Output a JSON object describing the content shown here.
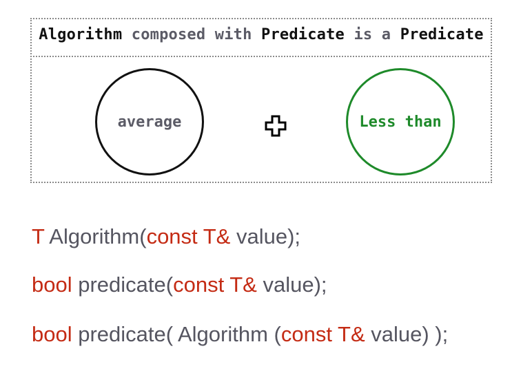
{
  "header": {
    "parts": [
      "Algorithm",
      "composed with",
      "Predicate",
      "is a",
      "Predicate"
    ]
  },
  "diagram": {
    "left_label": "average",
    "operator": "+",
    "right_label": "Less than"
  },
  "code": {
    "line1": [
      "T",
      "Algorithm(",
      "const T&",
      "value);"
    ],
    "line2": [
      "bool",
      "predicate(",
      "const T&",
      "value);"
    ],
    "line3": [
      "bool",
      "predicate( Algorithm (",
      "const T&",
      "value) );"
    ]
  },
  "colors": {
    "keyword": "#c42b14",
    "text": "#555560",
    "predicate_circle": "#1e8a2a",
    "algorithm_circle": "#111111"
  }
}
